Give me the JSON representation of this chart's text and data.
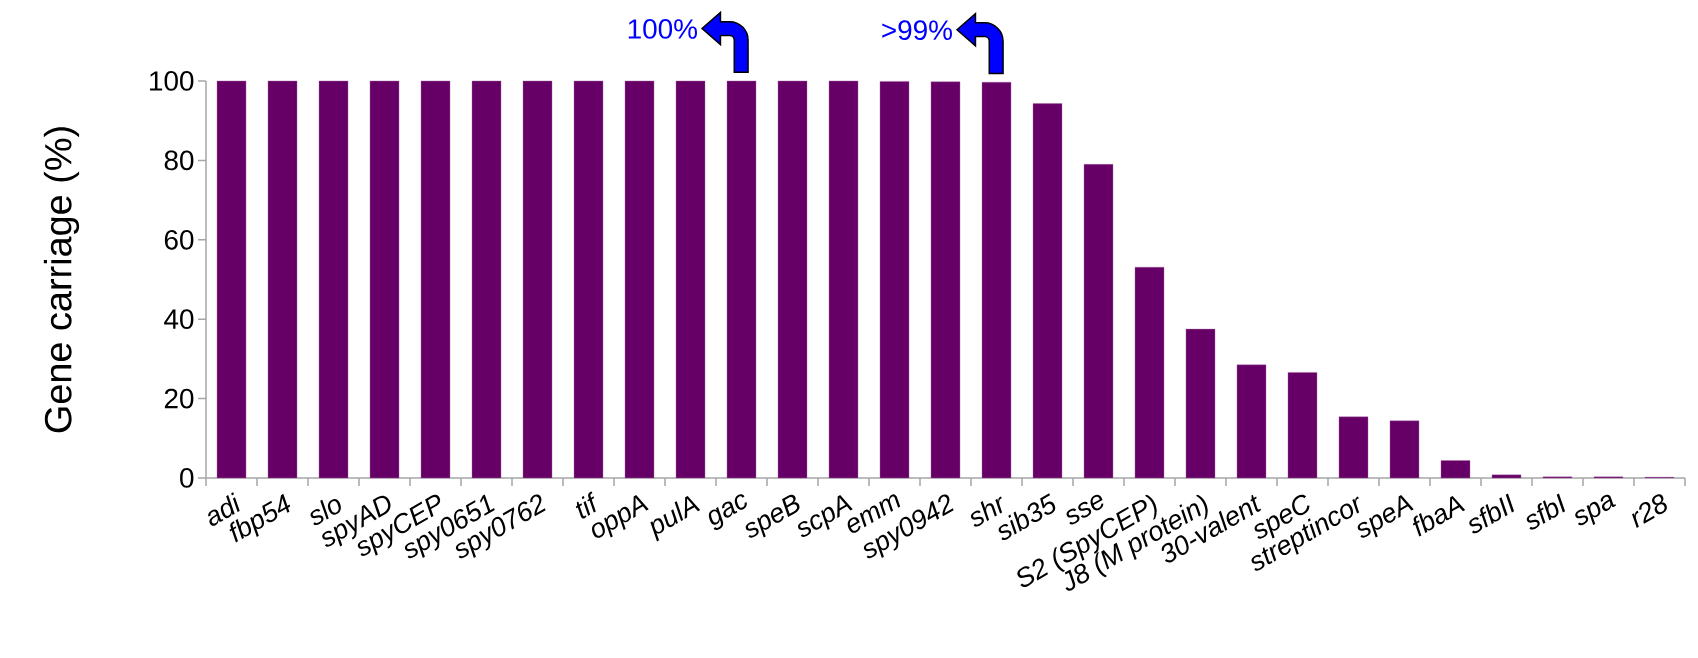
{
  "chart_data": {
    "type": "bar",
    "ylabel": "Gene carriage (%)",
    "categories": [
      "adi",
      "fbp54",
      "slo",
      "spyAD",
      "spyCEP",
      "spy0651",
      "spy0762",
      "tif",
      "oppA",
      "pulA",
      "gac",
      "speB",
      "scpA",
      "emm",
      "spy0942",
      "shr",
      "sib35",
      "sse",
      "S2 (SpyCEP)",
      "J8 (M protein)",
      "30-valent",
      "speC",
      "streptincor",
      "speA",
      "fbaA",
      "sfbII",
      "sfbI",
      "spa",
      "r28"
    ],
    "values": [
      100,
      100,
      100,
      100,
      100,
      100,
      100,
      100,
      100,
      100,
      100,
      100,
      100,
      99.9,
      99.8,
      99.7,
      94.3,
      79.0,
      53.1,
      37.5,
      28.5,
      26.6,
      15.4,
      14.4,
      4.4,
      0.8,
      0.3,
      0.3,
      0.2
    ],
    "color": "#660066",
    "ylim": [
      0,
      100
    ],
    "yticks": [
      0,
      20,
      40,
      60,
      80,
      100
    ],
    "grid": false,
    "annotations": [
      {
        "text": "100%",
        "x": "gac",
        "y": 100
      },
      {
        "text": ">99%",
        "x": "shr",
        "y": 99.7
      }
    ]
  }
}
